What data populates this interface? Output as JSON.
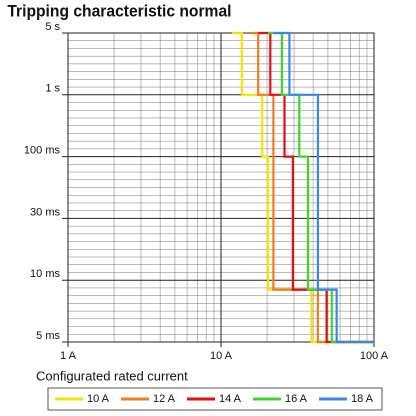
{
  "chart_data": {
    "type": "line",
    "title": "Tripping characteristic normal",
    "legend_title": "Configurated rated current",
    "xscale": "log",
    "xlim": [
      1,
      100
    ],
    "xticks": [
      {
        "value": 1,
        "label": "1 A"
      },
      {
        "value": 10,
        "label": "10 A"
      },
      {
        "value": 100,
        "label": "100 A"
      }
    ],
    "ylim": [
      0.005,
      5
    ],
    "yticks": [
      {
        "value": 5,
        "label": "5 s"
      },
      {
        "value": 1,
        "label": "1 s"
      },
      {
        "value": 0.1,
        "label": "100 ms"
      },
      {
        "value": 0.03,
        "label": "30 ms"
      },
      {
        "value": 0.01,
        "label": "10 ms"
      },
      {
        "value": 0.005,
        "label": "5 ms"
      }
    ],
    "grid": true,
    "legend": "bottom",
    "series": [
      {
        "name": "10 A",
        "color": "#f5e400",
        "x": [
          11.8,
          13.7,
          13.7,
          18.6,
          18.6,
          20.3,
          20.3,
          39,
          39,
          100
        ],
        "values": [
          5,
          5,
          1,
          1,
          0.1,
          0.1,
          0.009,
          0.009,
          0.005,
          0.005
        ]
      },
      {
        "name": "12 A",
        "color": "#f07c1e",
        "x": [
          15.5,
          17.5,
          17.5,
          22,
          22,
          43,
          43,
          100
        ],
        "values": [
          5,
          5,
          1,
          1,
          0.009,
          0.009,
          0.005,
          0.005
        ]
      },
      {
        "name": "14 A",
        "color": "#e01010",
        "x": [
          17.5,
          21,
          21,
          26,
          26,
          29.5,
          29.5,
          49,
          49,
          100
        ],
        "values": [
          5,
          5,
          1,
          1,
          0.1,
          0.1,
          0.009,
          0.009,
          0.005,
          0.005
        ]
      },
      {
        "name": "16 A",
        "color": "#3ed62a",
        "x": [
          20.3,
          25,
          25,
          32.5,
          32.5,
          37,
          37,
          53,
          53,
          100
        ],
        "values": [
          5,
          5,
          1,
          1,
          0.1,
          0.1,
          0.009,
          0.009,
          0.005,
          0.005
        ]
      },
      {
        "name": "18 A",
        "color": "#3a86e8",
        "x": [
          22,
          28,
          28,
          43,
          43,
          57,
          57,
          100
        ],
        "values": [
          5,
          5,
          1,
          1,
          0.009,
          0.009,
          0.005,
          0.005
        ]
      }
    ]
  }
}
